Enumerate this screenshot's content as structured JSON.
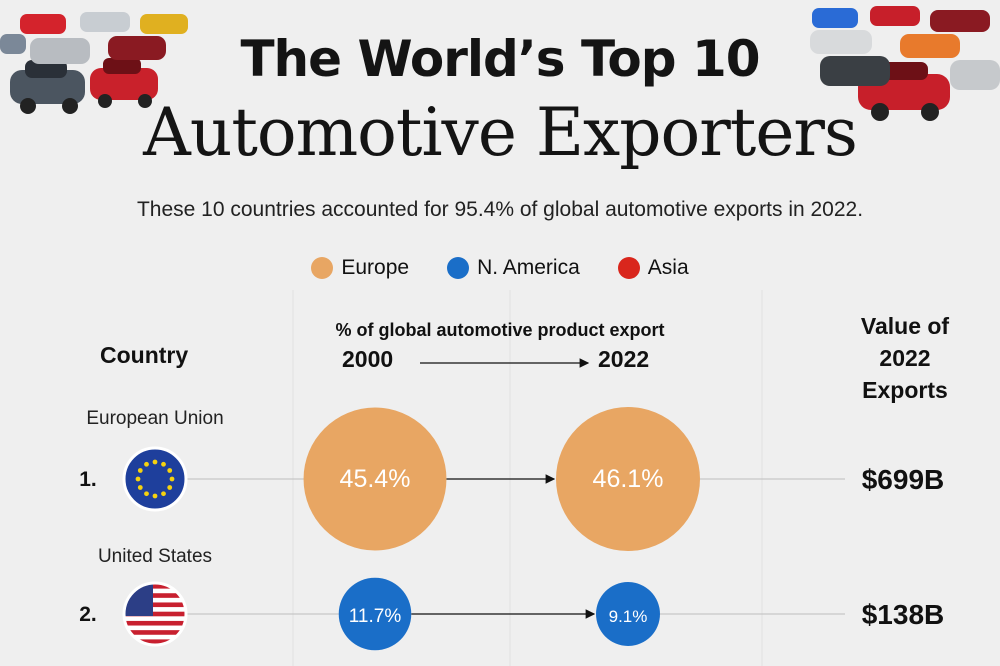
{
  "title_line1": "The World’s Top 10",
  "title_line2": "Automotive Exporters",
  "subtitle": "These 10 countries accounted for 95.4% of global automotive exports in 2022.",
  "legend": [
    {
      "label": "Europe",
      "color": "#e8a663"
    },
    {
      "label": "N. America",
      "color": "#1a6ec8"
    },
    {
      "label": "Asia",
      "color": "#d9261c"
    }
  ],
  "headers": {
    "country": "Country",
    "metric": "% of global automotive product export",
    "year_start": "2000",
    "year_end": "2022",
    "value": [
      "Value of",
      "2022",
      "Exports"
    ]
  },
  "chart_data": {
    "type": "bubble-table",
    "title": "The World’s Top 10 Automotive Exporters",
    "columns": [
      "Country",
      "2000 (% of global automotive product export)",
      "2022 (% of global automotive product export)",
      "Value of 2022 Exports"
    ],
    "rows": [
      {
        "rank": "1.",
        "country": "European Union",
        "region": "Europe",
        "share_2000": 45.4,
        "share_2000_label": "45.4%",
        "share_2022": 46.1,
        "share_2022_label": "46.1%",
        "value_2022": "$699B",
        "flag": "eu-flag"
      },
      {
        "rank": "2.",
        "country": "United States",
        "region": "N. America",
        "share_2000": 11.7,
        "share_2000_label": "11.7%",
        "share_2022": 9.1,
        "share_2022_label": "9.1%",
        "value_2022": "$138B",
        "flag": "us-flag"
      }
    ],
    "colors": {
      "Europe": "#e8a663",
      "N. America": "#1a6ec8",
      "Asia": "#d9261c"
    }
  }
}
